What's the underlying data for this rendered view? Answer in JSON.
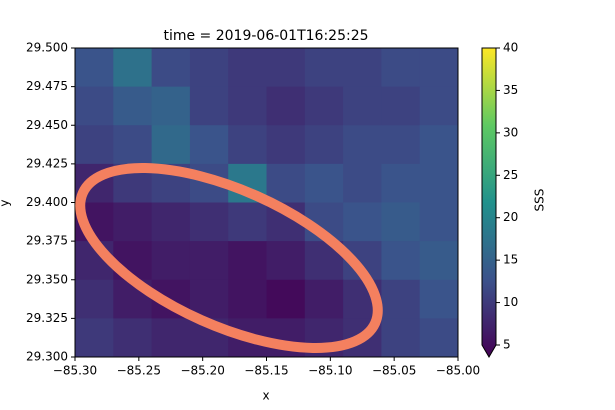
{
  "chart_data": {
    "type": "heatmap",
    "title": "time = 2019-06-01T16:25:25",
    "x_label": "x",
    "y_label": "y",
    "xlim": [
      -85.3,
      -85.0
    ],
    "xticks": [
      {
        "value": -85.3,
        "label": "−85.30"
      },
      {
        "value": -85.25,
        "label": "−85.25"
      },
      {
        "value": -85.2,
        "label": "−85.20"
      },
      {
        "value": -85.15,
        "label": "−85.15"
      },
      {
        "value": -85.1,
        "label": "−85.10"
      },
      {
        "value": -85.05,
        "label": "−85.05"
      },
      {
        "value": -85.0,
        "label": "−85.00"
      }
    ],
    "ylim": [
      29.3,
      29.5
    ],
    "yticks": [
      {
        "value": 29.3,
        "label": "29.300"
      },
      {
        "value": 29.325,
        "label": "29.325"
      },
      {
        "value": 29.35,
        "label": "29.350"
      },
      {
        "value": 29.375,
        "label": "29.375"
      },
      {
        "value": 29.4,
        "label": "29.400"
      },
      {
        "value": 29.425,
        "label": "29.425"
      },
      {
        "value": 29.45,
        "label": "29.450"
      },
      {
        "value": 29.475,
        "label": "29.475"
      },
      {
        "value": 29.5,
        "label": "29.500"
      }
    ],
    "colormap": "viridis",
    "colorbar": {
      "label": "SSS",
      "lim": [
        5,
        40
      ],
      "ticks": [
        5,
        10,
        15,
        20,
        25,
        30,
        35,
        40
      ]
    },
    "z": [
      [
        14,
        18,
        13,
        12,
        11,
        11,
        12,
        12,
        13,
        13
      ],
      [
        13,
        15,
        16,
        12,
        11,
        10,
        11,
        12,
        12,
        13
      ],
      [
        12,
        13,
        17,
        14,
        12,
        11,
        12,
        13,
        13,
        14
      ],
      [
        9,
        11,
        12,
        13,
        19,
        13,
        14,
        13,
        14,
        14
      ],
      [
        7,
        8,
        9,
        10,
        11,
        10,
        13,
        14,
        15,
        14
      ],
      [
        9,
        7,
        8,
        8,
        7,
        8,
        10,
        12,
        14,
        15
      ],
      [
        10,
        8,
        7,
        8,
        7,
        6,
        8,
        10,
        12,
        14
      ],
      [
        11,
        10,
        9,
        9,
        8,
        8,
        9,
        10,
        12,
        13
      ]
    ]
  }
}
